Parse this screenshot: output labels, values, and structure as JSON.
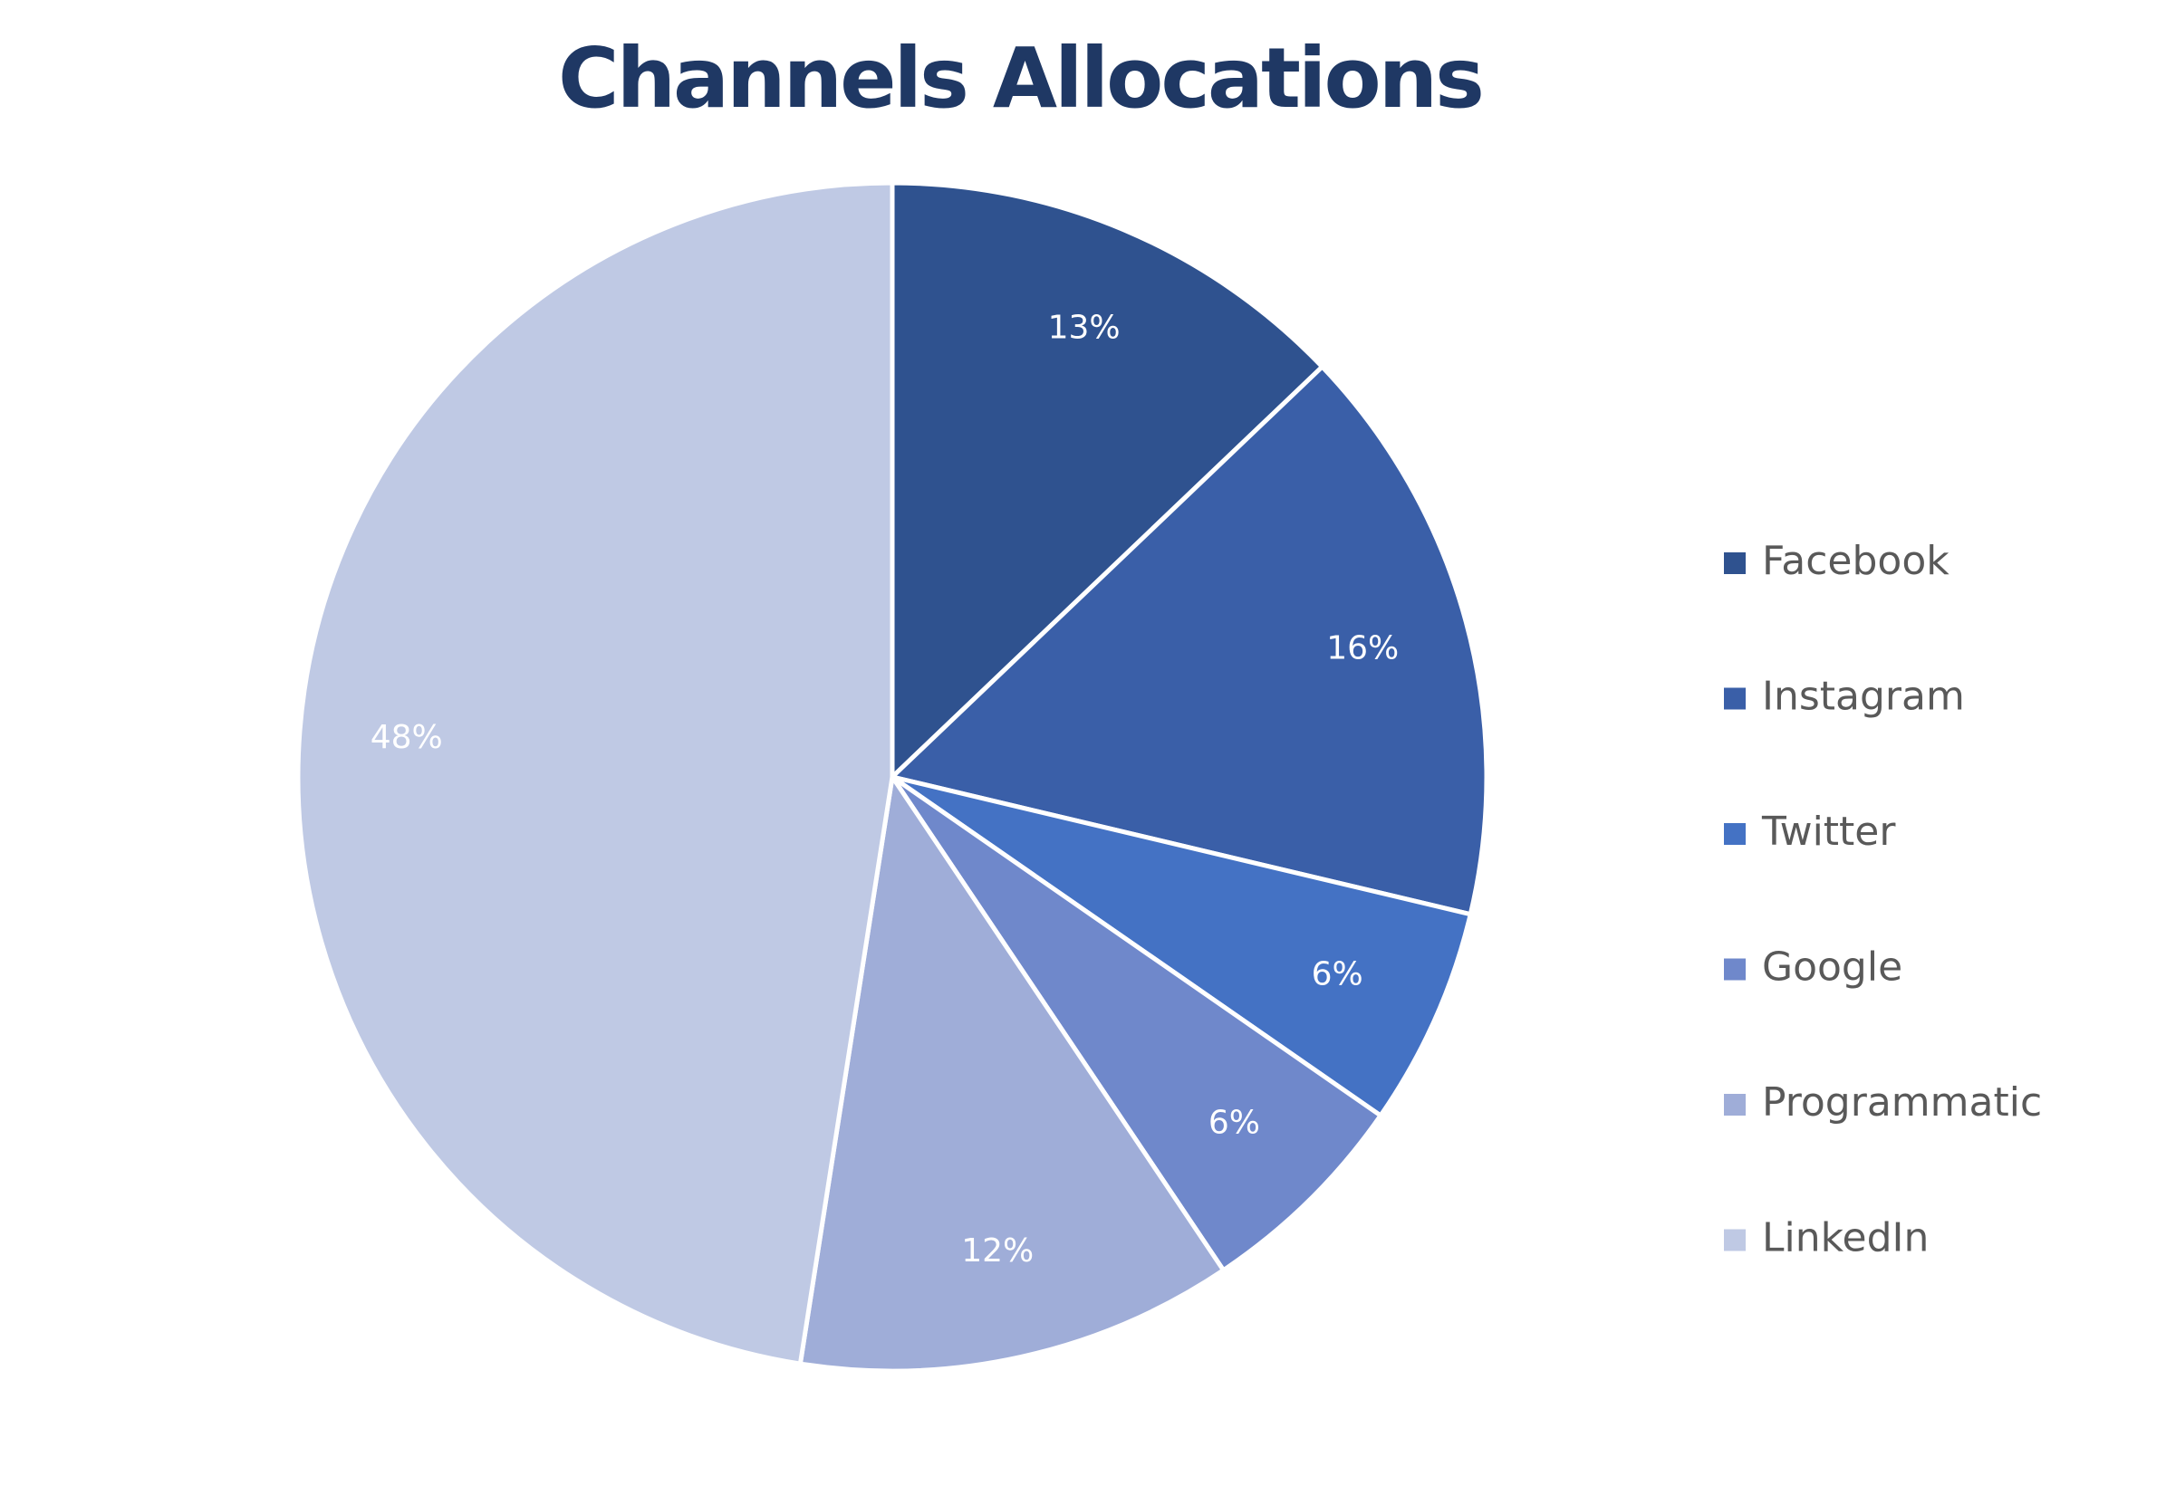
{
  "chart_data": {
    "type": "pie",
    "title": "Channels Allocations",
    "categories": [
      "Facebook",
      "Instagram",
      "Twitter",
      "Google",
      "Programmatic",
      "LinkedIn"
    ],
    "values": [
      13,
      16,
      6,
      6,
      12,
      48
    ],
    "data_labels": [
      "13%",
      "16%",
      "6%",
      "6%",
      "12%",
      "48%"
    ],
    "colors": [
      "#2F528F",
      "#3A5FA8",
      "#4472C4",
      "#6F88CB",
      "#9FADD8",
      "#BFC9E4"
    ],
    "title_color": "#1F3864",
    "legend_placement": "right",
    "start_angle": "12 o'clock",
    "direction": "clockwise"
  }
}
